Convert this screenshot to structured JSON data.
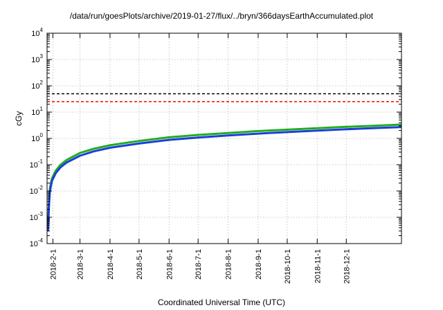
{
  "chart_data": {
    "type": "line",
    "title": "/data/run/goesPlots/archive/2019-01-27/flux/../bryn/366daysEarthAccumulated.plot",
    "xlabel": "Coordinated Universal Time (UTC)",
    "ylabel": "cGy",
    "xlim": [
      "2018-01-26",
      "2019-01-27"
    ],
    "ylim": [
      0.0001,
      10000
    ],
    "yscale": "log",
    "grid": true,
    "x_tick_labels": [
      "2018-2-1",
      "2018-3-1",
      "2018-4-1",
      "2018-5-1",
      "2018-6-1",
      "2018-7-1",
      "2018-8-1",
      "2018-9-1",
      "2018-10-1",
      "2018-11-1",
      "2018-12-1"
    ],
    "x_tick_dates": [
      "2018-02-01",
      "2018-03-01",
      "2018-04-01",
      "2018-05-01",
      "2018-06-01",
      "2018-07-01",
      "2018-08-01",
      "2018-09-01",
      "2018-10-01",
      "2018-11-01",
      "2018-12-01"
    ],
    "y_ticks": [
      {
        "base": "10",
        "exp": "-4",
        "value": 0.0001
      },
      {
        "base": "10",
        "exp": "-3",
        "value": 0.001
      },
      {
        "base": "10",
        "exp": "-2",
        "value": 0.01
      },
      {
        "base": "10",
        "exp": "-1",
        "value": 0.1
      },
      {
        "base": "10",
        "exp": "0",
        "value": 1
      },
      {
        "base": "10",
        "exp": "1",
        "value": 10
      },
      {
        "base": "10",
        "exp": "2",
        "value": 100
      },
      {
        "base": "10",
        "exp": "3",
        "value": 1000
      },
      {
        "base": "10",
        "exp": "4",
        "value": 10000
      }
    ],
    "reference_lines": [
      {
        "value": 50,
        "color": "#000000",
        "style": "dashed"
      },
      {
        "value": 25,
        "color": "#ff0000",
        "style": "dashed"
      }
    ],
    "series": [
      {
        "color": "#22aa22",
        "x": [
          "2018-01-27",
          "2018-01-28",
          "2018-01-29",
          "2018-01-31",
          "2018-02-04",
          "2018-02-09",
          "2018-02-15",
          "2018-03-01",
          "2018-03-15",
          "2018-04-01",
          "2018-05-01",
          "2018-06-01",
          "2018-07-01",
          "2018-08-01",
          "2018-09-01",
          "2018-10-01",
          "2018-11-01",
          "2018-12-01",
          "2019-01-01",
          "2019-01-27"
        ],
        "y": [
          0.0004,
          0.004,
          0.013,
          0.03,
          0.06,
          0.1,
          0.15,
          0.28,
          0.4,
          0.55,
          0.8,
          1.1,
          1.35,
          1.6,
          1.9,
          2.15,
          2.45,
          2.75,
          3.05,
          3.35
        ]
      },
      {
        "color": "#1a3fd6",
        "x": [
          "2018-01-27",
          "2018-01-28",
          "2018-01-29",
          "2018-01-31",
          "2018-02-04",
          "2018-02-09",
          "2018-02-15",
          "2018-03-01",
          "2018-03-15",
          "2018-04-01",
          "2018-05-01",
          "2018-06-01",
          "2018-07-01",
          "2018-08-01",
          "2018-09-01",
          "2018-10-01",
          "2018-11-01",
          "2018-12-01",
          "2019-01-01",
          "2019-01-27"
        ],
        "y": [
          0.0003,
          0.003,
          0.01,
          0.024,
          0.048,
          0.08,
          0.12,
          0.22,
          0.32,
          0.44,
          0.64,
          0.88,
          1.08,
          1.3,
          1.52,
          1.74,
          1.98,
          2.22,
          2.48,
          2.7
        ]
      }
    ]
  }
}
